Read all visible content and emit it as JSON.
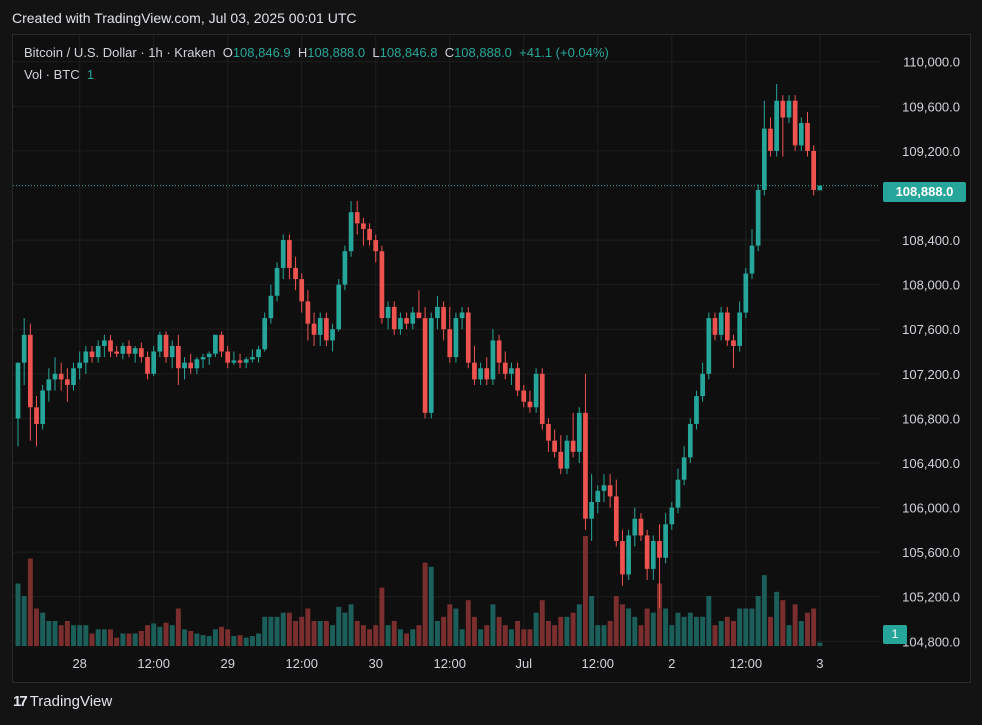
{
  "header": {
    "created_text": "Created with TradingView.com, Jul 03, 2025 00:01 UTC"
  },
  "legend": {
    "symbol": "Bitcoin / U.S. Dollar · 1h · Kraken",
    "open_label": "O",
    "open": "108,846.9",
    "high_label": "H",
    "high": "108,888.0",
    "low_label": "L",
    "low": "108,846.8",
    "close_label": "C",
    "close": "108,888.0",
    "change": "+41.1 (+0.04%)",
    "vol_label": "Vol · BTC",
    "vol_value": "1"
  },
  "price_tag": "108,888.0",
  "volume_tag": "1",
  "brand": {
    "name": "TradingView",
    "icon": "tradingview-logo-icon"
  },
  "colors": {
    "up": "#26a69a",
    "down": "#ef5350",
    "up_vol": "#1c5f5a",
    "down_vol": "#7a2e2e",
    "grid": "#1f1f1f"
  },
  "chart_data": {
    "type": "candlestick",
    "interval": "1h",
    "y_axis_ticks": [
      "110,000.0",
      "109,600.0",
      "109,200.0",
      "108,400.0",
      "108,000.0",
      "107,600.0",
      "107,200.0",
      "106,800.0",
      "106,400.0",
      "106,000.0",
      "105,600.0",
      "105,200.0",
      "104,800.0"
    ],
    "y_axis_values": [
      110000,
      109600,
      109200,
      108400,
      108000,
      107600,
      107200,
      106800,
      106400,
      106000,
      105600,
      105200,
      104800
    ],
    "ylim": [
      104740,
      110240
    ],
    "x_axis_ticks": [
      {
        "label": "28",
        "index": 10
      },
      {
        "label": "12:00",
        "index": 22
      },
      {
        "label": "29",
        "index": 34
      },
      {
        "label": "12:00",
        "index": 46
      },
      {
        "label": "30",
        "index": 58
      },
      {
        "label": "12:00",
        "index": 70
      },
      {
        "label": "Jul",
        "index": 82
      },
      {
        "label": "12:00",
        "index": 94
      },
      {
        "label": "2",
        "index": 106
      },
      {
        "label": "12:00",
        "index": 118
      },
      {
        "label": "3",
        "index": 130
      }
    ],
    "last_price": 108888.0,
    "candles": [
      {
        "o": 106800,
        "h": 107300,
        "l": 106550,
        "c": 107300
      },
      {
        "o": 107300,
        "h": 107700,
        "l": 107100,
        "c": 107550
      },
      {
        "o": 107550,
        "h": 107650,
        "l": 106600,
        "c": 106900
      },
      {
        "o": 106900,
        "h": 107000,
        "l": 106550,
        "c": 106750
      },
      {
        "o": 106750,
        "h": 107100,
        "l": 106700,
        "c": 107050
      },
      {
        "o": 107050,
        "h": 107250,
        "l": 106950,
        "c": 107150
      },
      {
        "o": 107150,
        "h": 107350,
        "l": 107050,
        "c": 107200
      },
      {
        "o": 107200,
        "h": 107300,
        "l": 107050,
        "c": 107150
      },
      {
        "o": 107150,
        "h": 107250,
        "l": 106950,
        "c": 107100
      },
      {
        "o": 107100,
        "h": 107300,
        "l": 107050,
        "c": 107250
      },
      {
        "o": 107250,
        "h": 107400,
        "l": 107150,
        "c": 107300
      },
      {
        "o": 107300,
        "h": 107450,
        "l": 107200,
        "c": 107400
      },
      {
        "o": 107400,
        "h": 107450,
        "l": 107300,
        "c": 107350
      },
      {
        "o": 107350,
        "h": 107500,
        "l": 107300,
        "c": 107450
      },
      {
        "o": 107450,
        "h": 107550,
        "l": 107350,
        "c": 107500
      },
      {
        "o": 107500,
        "h": 107550,
        "l": 107350,
        "c": 107400
      },
      {
        "o": 107400,
        "h": 107450,
        "l": 107350,
        "c": 107380
      },
      {
        "o": 107380,
        "h": 107480,
        "l": 107330,
        "c": 107450
      },
      {
        "o": 107450,
        "h": 107500,
        "l": 107350,
        "c": 107380
      },
      {
        "o": 107380,
        "h": 107450,
        "l": 107300,
        "c": 107430
      },
      {
        "o": 107430,
        "h": 107480,
        "l": 107300,
        "c": 107350
      },
      {
        "o": 107350,
        "h": 107400,
        "l": 107150,
        "c": 107200
      },
      {
        "o": 107200,
        "h": 107450,
        "l": 107180,
        "c": 107400
      },
      {
        "o": 107400,
        "h": 107580,
        "l": 107350,
        "c": 107550
      },
      {
        "o": 107550,
        "h": 107580,
        "l": 107300,
        "c": 107350
      },
      {
        "o": 107350,
        "h": 107500,
        "l": 107250,
        "c": 107450
      },
      {
        "o": 107450,
        "h": 107550,
        "l": 107100,
        "c": 107250
      },
      {
        "o": 107250,
        "h": 107350,
        "l": 107150,
        "c": 107300
      },
      {
        "o": 107300,
        "h": 107380,
        "l": 107200,
        "c": 107250
      },
      {
        "o": 107250,
        "h": 107350,
        "l": 107200,
        "c": 107330
      },
      {
        "o": 107330,
        "h": 107380,
        "l": 107250,
        "c": 107350
      },
      {
        "o": 107350,
        "h": 107400,
        "l": 107280,
        "c": 107380
      },
      {
        "o": 107380,
        "h": 107550,
        "l": 107350,
        "c": 107550
      },
      {
        "o": 107550,
        "h": 107580,
        "l": 107350,
        "c": 107400
      },
      {
        "o": 107400,
        "h": 107450,
        "l": 107250,
        "c": 107300
      },
      {
        "o": 107300,
        "h": 107400,
        "l": 107280,
        "c": 107320
      },
      {
        "o": 107320,
        "h": 107380,
        "l": 107250,
        "c": 107300
      },
      {
        "o": 107300,
        "h": 107350,
        "l": 107250,
        "c": 107330
      },
      {
        "o": 107330,
        "h": 107420,
        "l": 107300,
        "c": 107350
      },
      {
        "o": 107350,
        "h": 107450,
        "l": 107300,
        "c": 107420
      },
      {
        "o": 107420,
        "h": 107750,
        "l": 107400,
        "c": 107700
      },
      {
        "o": 107700,
        "h": 108000,
        "l": 107650,
        "c": 107900
      },
      {
        "o": 107900,
        "h": 108200,
        "l": 107850,
        "c": 108150
      },
      {
        "o": 108150,
        "h": 108450,
        "l": 108050,
        "c": 108400
      },
      {
        "o": 108400,
        "h": 108450,
        "l": 108050,
        "c": 108150
      },
      {
        "o": 108150,
        "h": 108250,
        "l": 107950,
        "c": 108050
      },
      {
        "o": 108050,
        "h": 108100,
        "l": 107750,
        "c": 107850
      },
      {
        "o": 107850,
        "h": 107950,
        "l": 107500,
        "c": 107650
      },
      {
        "o": 107650,
        "h": 107750,
        "l": 107450,
        "c": 107550
      },
      {
        "o": 107550,
        "h": 107750,
        "l": 107450,
        "c": 107700
      },
      {
        "o": 107700,
        "h": 107750,
        "l": 107450,
        "c": 107500
      },
      {
        "o": 107500,
        "h": 107650,
        "l": 107400,
        "c": 107600
      },
      {
        "o": 107600,
        "h": 108050,
        "l": 107580,
        "c": 108000
      },
      {
        "o": 108000,
        "h": 108350,
        "l": 107950,
        "c": 108300
      },
      {
        "o": 108300,
        "h": 108750,
        "l": 108250,
        "c": 108650
      },
      {
        "o": 108650,
        "h": 108750,
        "l": 108450,
        "c": 108550
      },
      {
        "o": 108550,
        "h": 108600,
        "l": 108350,
        "c": 108500
      },
      {
        "o": 108500,
        "h": 108550,
        "l": 108350,
        "c": 108400
      },
      {
        "o": 108400,
        "h": 108450,
        "l": 108200,
        "c": 108300
      },
      {
        "o": 108300,
        "h": 108350,
        "l": 107650,
        "c": 107700
      },
      {
        "o": 107700,
        "h": 107850,
        "l": 107600,
        "c": 107800
      },
      {
        "o": 107800,
        "h": 107850,
        "l": 107550,
        "c": 107600
      },
      {
        "o": 107600,
        "h": 107750,
        "l": 107550,
        "c": 107700
      },
      {
        "o": 107700,
        "h": 107750,
        "l": 107600,
        "c": 107650
      },
      {
        "o": 107650,
        "h": 107800,
        "l": 107600,
        "c": 107750
      },
      {
        "o": 107750,
        "h": 107950,
        "l": 107700,
        "c": 107700
      },
      {
        "o": 107700,
        "h": 107800,
        "l": 106800,
        "c": 106850
      },
      {
        "o": 106850,
        "h": 107750,
        "l": 106800,
        "c": 107700
      },
      {
        "o": 107700,
        "h": 107900,
        "l": 107600,
        "c": 107800
      },
      {
        "o": 107800,
        "h": 107850,
        "l": 107500,
        "c": 107600
      },
      {
        "o": 107600,
        "h": 107800,
        "l": 107300,
        "c": 107350
      },
      {
        "o": 107350,
        "h": 107750,
        "l": 107300,
        "c": 107700
      },
      {
        "o": 107700,
        "h": 107800,
        "l": 107600,
        "c": 107750
      },
      {
        "o": 107750,
        "h": 107800,
        "l": 107250,
        "c": 107300
      },
      {
        "o": 107300,
        "h": 107450,
        "l": 107100,
        "c": 107150
      },
      {
        "o": 107150,
        "h": 107300,
        "l": 107100,
        "c": 107250
      },
      {
        "o": 107250,
        "h": 107350,
        "l": 107100,
        "c": 107150
      },
      {
        "o": 107150,
        "h": 107600,
        "l": 107100,
        "c": 107500
      },
      {
        "o": 107500,
        "h": 107550,
        "l": 107200,
        "c": 107300
      },
      {
        "o": 107300,
        "h": 107400,
        "l": 107150,
        "c": 107200
      },
      {
        "o": 107200,
        "h": 107300,
        "l": 107100,
        "c": 107250
      },
      {
        "o": 107250,
        "h": 107300,
        "l": 107000,
        "c": 107050
      },
      {
        "o": 107050,
        "h": 107100,
        "l": 106900,
        "c": 106950
      },
      {
        "o": 106950,
        "h": 107050,
        "l": 106850,
        "c": 106900
      },
      {
        "o": 106900,
        "h": 107250,
        "l": 106850,
        "c": 107200
      },
      {
        "o": 107200,
        "h": 107250,
        "l": 106700,
        "c": 106750
      },
      {
        "o": 106750,
        "h": 106800,
        "l": 106500,
        "c": 106600
      },
      {
        "o": 106600,
        "h": 106700,
        "l": 106450,
        "c": 106500
      },
      {
        "o": 106500,
        "h": 106650,
        "l": 106300,
        "c": 106350
      },
      {
        "o": 106350,
        "h": 106650,
        "l": 106300,
        "c": 106600
      },
      {
        "o": 106600,
        "h": 106850,
        "l": 106450,
        "c": 106500
      },
      {
        "o": 106500,
        "h": 106900,
        "l": 106400,
        "c": 106850
      },
      {
        "o": 106850,
        "h": 107200,
        "l": 105800,
        "c": 105900
      },
      {
        "o": 105900,
        "h": 106300,
        "l": 105700,
        "c": 106050
      },
      {
        "o": 106050,
        "h": 106200,
        "l": 105950,
        "c": 106150
      },
      {
        "o": 106150,
        "h": 106300,
        "l": 106050,
        "c": 106200
      },
      {
        "o": 106200,
        "h": 106300,
        "l": 106000,
        "c": 106100
      },
      {
        "o": 106100,
        "h": 106250,
        "l": 105650,
        "c": 105700
      },
      {
        "o": 105700,
        "h": 105800,
        "l": 105300,
        "c": 105400
      },
      {
        "o": 105400,
        "h": 105800,
        "l": 105350,
        "c": 105750
      },
      {
        "o": 105750,
        "h": 106000,
        "l": 105650,
        "c": 105900
      },
      {
        "o": 105900,
        "h": 105950,
        "l": 105700,
        "c": 105750
      },
      {
        "o": 105750,
        "h": 105800,
        "l": 105350,
        "c": 105450
      },
      {
        "o": 105450,
        "h": 105750,
        "l": 105350,
        "c": 105700
      },
      {
        "o": 105700,
        "h": 105850,
        "l": 105100,
        "c": 105550
      },
      {
        "o": 105550,
        "h": 105950,
        "l": 105500,
        "c": 105850
      },
      {
        "o": 105850,
        "h": 106050,
        "l": 105800,
        "c": 106000
      },
      {
        "o": 106000,
        "h": 106350,
        "l": 105950,
        "c": 106250
      },
      {
        "o": 106250,
        "h": 106550,
        "l": 106200,
        "c": 106450
      },
      {
        "o": 106450,
        "h": 106800,
        "l": 106400,
        "c": 106750
      },
      {
        "o": 106750,
        "h": 107050,
        "l": 106700,
        "c": 107000
      },
      {
        "o": 107000,
        "h": 107300,
        "l": 106950,
        "c": 107200
      },
      {
        "o": 107200,
        "h": 107750,
        "l": 107150,
        "c": 107700
      },
      {
        "o": 107700,
        "h": 107750,
        "l": 107500,
        "c": 107550
      },
      {
        "o": 107550,
        "h": 107800,
        "l": 107500,
        "c": 107750
      },
      {
        "o": 107750,
        "h": 107800,
        "l": 107450,
        "c": 107500
      },
      {
        "o": 107500,
        "h": 107550,
        "l": 107250,
        "c": 107450
      },
      {
        "o": 107450,
        "h": 107850,
        "l": 107400,
        "c": 107750
      },
      {
        "o": 107750,
        "h": 108150,
        "l": 107700,
        "c": 108100
      },
      {
        "o": 108100,
        "h": 108500,
        "l": 108050,
        "c": 108350
      },
      {
        "o": 108350,
        "h": 108900,
        "l": 108300,
        "c": 108850
      },
      {
        "o": 108850,
        "h": 109650,
        "l": 108800,
        "c": 109400
      },
      {
        "o": 109400,
        "h": 109500,
        "l": 109150,
        "c": 109200
      },
      {
        "o": 109200,
        "h": 109800,
        "l": 109150,
        "c": 109650
      },
      {
        "o": 109650,
        "h": 109700,
        "l": 109150,
        "c": 109500
      },
      {
        "o": 109500,
        "h": 109700,
        "l": 109450,
        "c": 109650
      },
      {
        "o": 109650,
        "h": 109700,
        "l": 109200,
        "c": 109250
      },
      {
        "o": 109250,
        "h": 109500,
        "l": 109200,
        "c": 109450
      },
      {
        "o": 109450,
        "h": 109550,
        "l": 109150,
        "c": 109200
      },
      {
        "o": 109200,
        "h": 109250,
        "l": 108800,
        "c": 108850
      },
      {
        "o": 108846.9,
        "h": 108888,
        "l": 108846.8,
        "c": 108888
      }
    ]
  }
}
